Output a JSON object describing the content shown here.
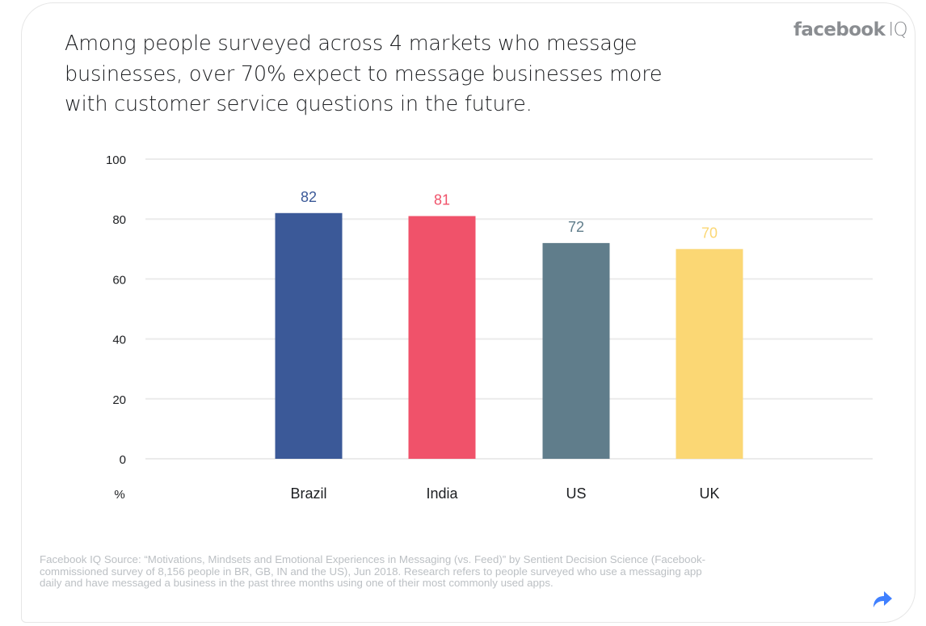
{
  "header": {
    "title": "Among people surveyed across 4 markets who message businesses, over 70% expect to message businesses more with customer service questions in the future.",
    "brand_bold": "facebook",
    "brand_light": "IQ"
  },
  "chart_data": {
    "type": "bar",
    "title": "Among people surveyed across 4 markets who message businesses, over 70% expect to message businesses more with customer service questions in the future.",
    "categories": [
      "Brazil",
      "India",
      "US",
      "UK"
    ],
    "values": [
      82,
      81,
      72,
      70
    ],
    "value_labels": [
      "82",
      "81",
      "72",
      "70"
    ],
    "colors": [
      "#3b5998",
      "#f0526a",
      "#607d8b",
      "#fbd774"
    ],
    "xlabel": "",
    "ylabel": "%",
    "ylim": [
      0,
      100
    ],
    "yticks": [
      0,
      20,
      40,
      60,
      80,
      100
    ],
    "ytick_labels": [
      "0",
      "20",
      "40",
      "60",
      "80",
      "100"
    ],
    "grid": true,
    "legend": "none"
  },
  "footer": {
    "source": "Facebook IQ Source: “Motivations, Mindsets and Emotional Experiences in Messaging (vs. Feed)” by Sentient Decision Science (Facebook-commissioned survey of 8,156 people in BR, GB, IN and the US), Jun 2018. Research refers to people surveyed who use a messaging app daily and have messaged a business in the past three months using one of their most commonly used apps.",
    "share_icon": "share-arrow-icon",
    "share_color": "#4080ff"
  }
}
